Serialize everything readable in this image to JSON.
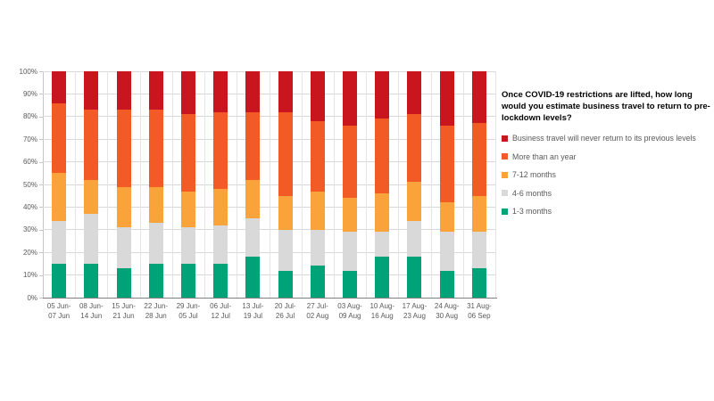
{
  "chart_data": {
    "type": "stacked-bar",
    "title": "Once COVID-19  restrictions are lifted, how long\nwould you estimate business travel to return to pre-\nlockdown levels?",
    "unit": "%",
    "ylim": [
      0,
      100
    ],
    "grid": true,
    "legend_position": "right",
    "y_ticks": [
      "0%",
      "10%",
      "20%",
      "30%",
      "40%",
      "50%",
      "60%",
      "70%",
      "80%",
      "90%",
      "100%"
    ],
    "categories": [
      [
        "05 Jun-",
        "07 Jun"
      ],
      [
        "08 Jun-",
        "14 Jun"
      ],
      [
        "15 Jun-",
        "21 Jun"
      ],
      [
        "22 Jun-",
        "28 Jun"
      ],
      [
        "29 Jun-",
        "05 Jul"
      ],
      [
        "06 Jul-",
        "12 Jul"
      ],
      [
        "13 Jul-",
        "19 Jul"
      ],
      [
        "20 Jul-",
        "26 Jul"
      ],
      [
        "27 Jul-",
        "02 Aug"
      ],
      [
        "03 Aug-",
        "09 Aug"
      ],
      [
        "10 Aug-",
        "16 Aug"
      ],
      [
        "17 Aug-",
        "23 Aug"
      ],
      [
        "24 Aug-",
        "30 Aug"
      ],
      [
        "31 Aug-",
        "06 Sep"
      ]
    ],
    "series": [
      {
        "name": "1-3 months",
        "color": "#00a278",
        "values": [
          15,
          15,
          13,
          15,
          15,
          15,
          18,
          12,
          14,
          12,
          18,
          18,
          12,
          13
        ]
      },
      {
        "name": "4-6 months",
        "color": "#d9d9d9",
        "values": [
          19,
          22,
          18,
          18,
          16,
          17,
          17,
          18,
          16,
          17,
          11,
          16,
          17,
          16
        ]
      },
      {
        "name": "7-12 months",
        "color": "#faa33b",
        "values": [
          21,
          15,
          18,
          16,
          16,
          16,
          17,
          15,
          17,
          15,
          17,
          17,
          13,
          16
        ]
      },
      {
        "name": "More than an year",
        "color": "#f25b26",
        "values": [
          31,
          31,
          34,
          34,
          34,
          34,
          30,
          37,
          31,
          32,
          33,
          30,
          34,
          32
        ]
      },
      {
        "name": "Business travel will never return to its previous levels",
        "color": "#c9161e",
        "values": [
          14,
          17,
          17,
          17,
          19,
          18,
          18,
          18,
          22,
          24,
          21,
          19,
          24,
          23
        ]
      }
    ]
  },
  "legend": {
    "title": "Once COVID-19  restrictions are lifted, how long\nwould you estimate business travel to return to pre-\nlockdown levels?"
  }
}
